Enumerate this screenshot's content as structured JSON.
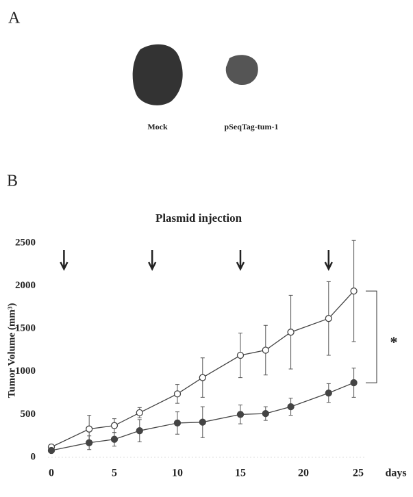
{
  "panel_a": {
    "label": "A",
    "samples": [
      "Mock",
      "pSeqTag-tum-1"
    ]
  },
  "chart_data": {
    "type": "line",
    "panel_label": "B",
    "annotation": "Plasmid injection",
    "significance": "*",
    "y_label": "Tumor Volume (mm³)",
    "x_label": "days",
    "injection_days": [
      1,
      8,
      15,
      22
    ],
    "x": [
      0,
      3,
      5,
      7,
      10,
      12,
      15,
      17,
      19,
      22,
      24
    ],
    "series": [
      {
        "marker": "open",
        "color": "#444444",
        "values": [
          120,
          330,
          370,
          520,
          740,
          930,
          1190,
          1250,
          1460,
          1620,
          1940
        ],
        "errors": [
          30,
          160,
          80,
          60,
          110,
          230,
          260,
          290,
          430,
          430,
          590
        ]
      },
      {
        "marker": "filled",
        "color": "#444444",
        "values": [
          80,
          170,
          210,
          310,
          400,
          410,
          500,
          510,
          590,
          750,
          870
        ],
        "errors": [
          20,
          80,
          80,
          130,
          130,
          180,
          110,
          80,
          100,
          110,
          170
        ]
      }
    ],
    "xlim": [
      0,
      25
    ],
    "xticks": [
      0,
      5,
      10,
      15,
      20,
      25
    ],
    "ylim": [
      0,
      2500
    ],
    "yticks": [
      0,
      500,
      1000,
      1500,
      2000,
      2500
    ]
  }
}
